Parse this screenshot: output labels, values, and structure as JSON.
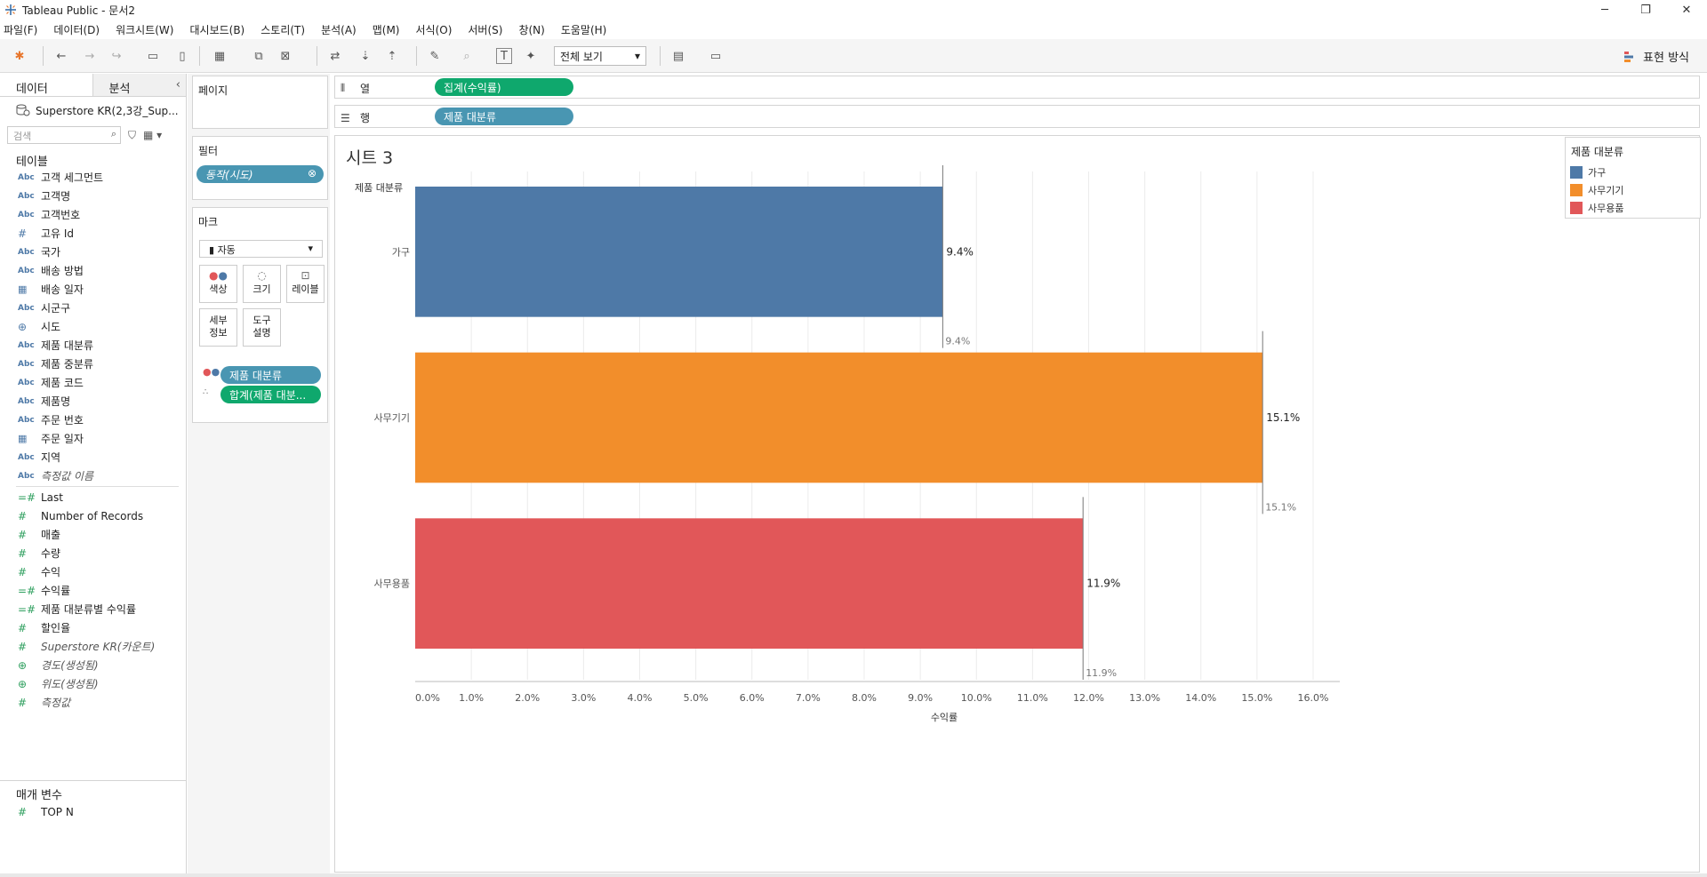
{
  "app": {
    "window_title": "Tableau Public - 문서2"
  },
  "window_controls": {
    "minimize": "─",
    "restore": "❐",
    "close": "✕"
  },
  "menu": [
    "파일(F)",
    "데이터(D)",
    "워크시트(W)",
    "대시보드(B)",
    "스토리(T)",
    "분석(A)",
    "맵(M)",
    "서식(O)",
    "서버(S)",
    "창(N)",
    "도움말(H)"
  ],
  "toolbar": {
    "fit_label": "전체 보기",
    "show_me_label": "표현 방식"
  },
  "data_pane": {
    "tab_data": "데이터",
    "tab_analytics": "분석",
    "datasource": "Superstore KR(2,3강_Sup...",
    "search_placeholder": "검색",
    "tables_title": "테이블",
    "dimensions": [
      {
        "type": "Abc",
        "name": "고객 세그먼트"
      },
      {
        "type": "Abc",
        "name": "고객명"
      },
      {
        "type": "Abc",
        "name": "고객번호"
      },
      {
        "type": "#",
        "name": "고유 Id"
      },
      {
        "type": "Abc",
        "name": "국가"
      },
      {
        "type": "Abc",
        "name": "배송 방법"
      },
      {
        "type": "date",
        "name": "배송 일자"
      },
      {
        "type": "Abc",
        "name": "시군구"
      },
      {
        "type": "geo",
        "name": "시도"
      },
      {
        "type": "Abc",
        "name": "제품 대분류"
      },
      {
        "type": "Abc",
        "name": "제품 중분류"
      },
      {
        "type": "Abc",
        "name": "제품 코드"
      },
      {
        "type": "Abc",
        "name": "제품명"
      },
      {
        "type": "Abc",
        "name": "주문 번호"
      },
      {
        "type": "date",
        "name": "주문 일자"
      },
      {
        "type": "Abc",
        "name": "지역"
      },
      {
        "type": "Abc",
        "name": "측정값 이름"
      }
    ],
    "measures": [
      {
        "type": "=#",
        "name": "Last"
      },
      {
        "type": "#",
        "name": "Number of Records"
      },
      {
        "type": "#",
        "name": "매출"
      },
      {
        "type": "#",
        "name": "수량"
      },
      {
        "type": "#",
        "name": "수익"
      },
      {
        "type": "=#",
        "name": "수익률"
      },
      {
        "type": "=#",
        "name": "제품 대분류별 수익률"
      },
      {
        "type": "#",
        "name": "할인율"
      },
      {
        "type": "#",
        "name": "Superstore KR(카운트)"
      },
      {
        "type": "geo",
        "name": "경도(생성됨)"
      },
      {
        "type": "geo",
        "name": "위도(생성됨)"
      },
      {
        "type": "#",
        "name": "측정값"
      }
    ],
    "params_title": "매개 변수",
    "params": [
      {
        "type": "#",
        "name": "TOP N"
      }
    ]
  },
  "cards": {
    "pages_title": "페이지",
    "filters_title": "필터",
    "filter_pill": "동작(시도)",
    "marks_title": "마크",
    "marks_type": "자동",
    "mark_buttons": {
      "color": "색상",
      "size": "크기",
      "label": "레이블",
      "detail_line1": "세부",
      "detail_line2": "정보",
      "tooltip_line1": "도구",
      "tooltip_line2": "설명"
    },
    "mark_pill_1": "제품 대분류",
    "mark_pill_2": "합계(제품 대분..."
  },
  "shelves": {
    "columns_label": "열",
    "columns_pill": "집계(수익률)",
    "rows_label": "행",
    "rows_pill": "제품 대분류"
  },
  "sheet": {
    "title": "시트 3",
    "row_header": "제품 대분류"
  },
  "legend": {
    "title": "제품 대분류",
    "items": [
      {
        "label": "가구",
        "color": "#4e79a7"
      },
      {
        "label": "사무기기",
        "color": "#f28e2b"
      },
      {
        "label": "사무용품",
        "color": "#e15759"
      }
    ]
  },
  "chart_data": {
    "type": "bar",
    "orientation": "horizontal",
    "categories": [
      "가구",
      "사무기기",
      "사무용품"
    ],
    "values": [
      9.4,
      15.1,
      11.9
    ],
    "value_labels": [
      "9.4%",
      "15.1%",
      "11.9%"
    ],
    "reference_labels": [
      "9.4%",
      "15.1%",
      "11.9%"
    ],
    "colors": [
      "#4e79a7",
      "#f28e2b",
      "#e15759"
    ],
    "xlabel": "수익률",
    "ylabel": "제품 대분류",
    "xlim": [
      0,
      16
    ],
    "ticks": [
      "0.0%",
      "1.0%",
      "2.0%",
      "3.0%",
      "4.0%",
      "5.0%",
      "6.0%",
      "7.0%",
      "8.0%",
      "9.0%",
      "10.0%",
      "11.0%",
      "12.0%",
      "13.0%",
      "14.0%",
      "15.0%",
      "16.0%"
    ],
    "grid": true
  }
}
